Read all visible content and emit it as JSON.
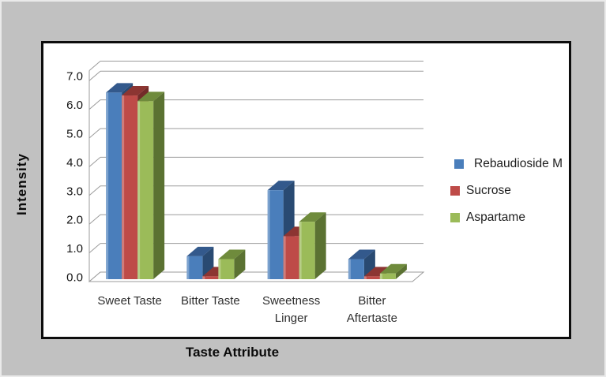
{
  "page": {
    "background": "#C1C1C1",
    "frame_border": "#0D0D0D",
    "plot_background": "#FFFFFF",
    "grid_color": "#9B9B9B"
  },
  "chart_data": {
    "type": "bar",
    "variant": "3d-clustered",
    "title": "",
    "xlabel": "Taste Attribute",
    "ylabel": "Intensity",
    "categories": [
      "Sweet Taste",
      "Bitter Taste",
      "Sweetness Linger",
      "Bitter Aftertaste"
    ],
    "category_display": [
      [
        "Sweet Taste"
      ],
      [
        "Bitter Taste"
      ],
      [
        "Sweetness",
        "Linger"
      ],
      [
        "Bitter",
        "Aftertaste"
      ]
    ],
    "series": [
      {
        "name": "Rebaudioside M",
        "color": "#4A7EBB",
        "top_color": "#33598C",
        "side_color": "#294A72",
        "values": [
          6.5,
          0.8,
          3.1,
          0.7
        ]
      },
      {
        "name": "Sucrose",
        "color": "#BE4B48",
        "top_color": "#8C3532",
        "side_color": "#732B29",
        "values": [
          6.4,
          0.1,
          1.5,
          0.1
        ]
      },
      {
        "name": "Aspartame",
        "color": "#9BBB59",
        "top_color": "#6F8B3C",
        "side_color": "#5B7232",
        "values": [
          6.2,
          0.7,
          2.0,
          0.2
        ]
      }
    ],
    "y_ticks": [
      "0.0",
      "1.0",
      "2.0",
      "3.0",
      "4.0",
      "5.0",
      "6.0",
      "7.0"
    ],
    "ylim": [
      0,
      7
    ],
    "grid": true,
    "legend_position": "right"
  }
}
